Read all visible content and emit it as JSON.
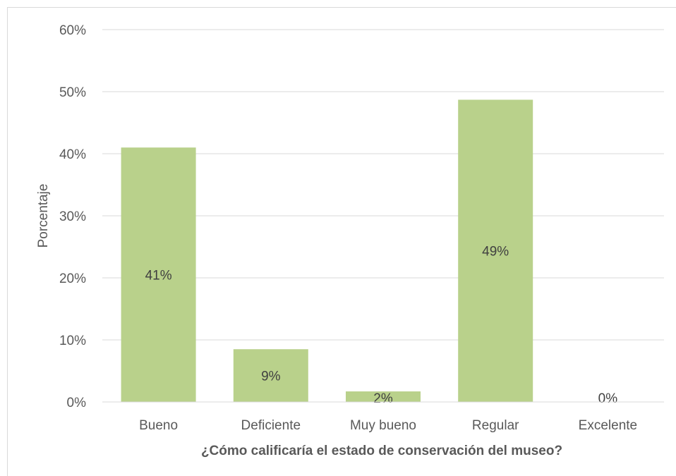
{
  "chart_data": {
    "type": "bar",
    "categories": [
      "Bueno",
      "Deficiente",
      "Muy bueno",
      "Regular",
      "Excelente"
    ],
    "values": [
      41,
      8.5,
      1.7,
      48.7,
      0
    ],
    "data_labels": [
      "41%",
      "9%",
      "2%",
      "49%",
      "0%"
    ],
    "xlabel": "¿Cómo calificaría el estado de conservación del museo?",
    "ylabel": "Porcentaje",
    "ylim": [
      0,
      60
    ],
    "y_ticks": [
      0,
      10,
      20,
      30,
      40,
      50,
      60
    ],
    "y_tick_labels": [
      "0%",
      "10%",
      "20%",
      "30%",
      "40%",
      "50%",
      "60%"
    ],
    "grid": true,
    "bar_color": "#b9d18b",
    "grid_color": "#d9d9d9"
  }
}
